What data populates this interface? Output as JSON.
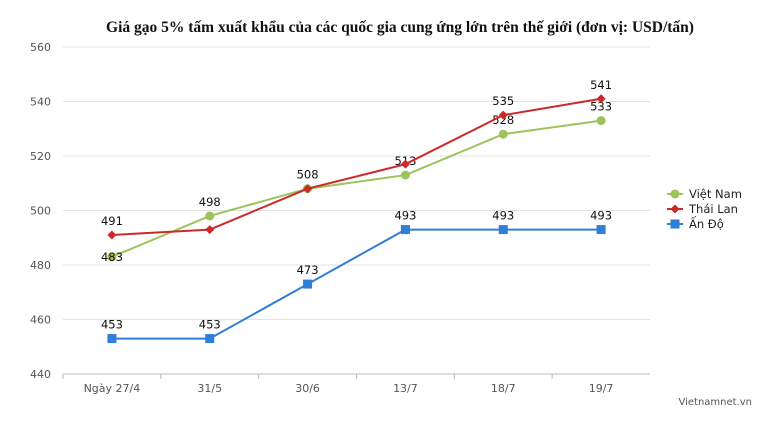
{
  "chart_data": {
    "type": "line",
    "title": "Giá gạo 5% tấm xuất khẩu của các quốc gia cung ứng lớn trên thế giới (đơn vị: USD/tấn)",
    "categories": [
      "Ngày 27/4",
      "31/5",
      "30/6",
      "13/7",
      "18/7",
      "19/7"
    ],
    "ylim": [
      440,
      560
    ],
    "yticks": [
      440,
      460,
      480,
      500,
      520,
      540,
      560
    ],
    "grid": true,
    "legend_position": "right",
    "series": [
      {
        "name": "Việt Nam",
        "color": "#9bc45a",
        "marker": "circle",
        "values": [
          483,
          498,
          508,
          513,
          528,
          533
        ],
        "labels": [
          "483",
          "498",
          "508",
          "513",
          "528",
          "533"
        ],
        "label_pos": [
          "below",
          "above",
          "none",
          "above",
          "above",
          "above"
        ]
      },
      {
        "name": "Thái Lan",
        "color": "#cc2a2a",
        "marker": "diamond",
        "values": [
          491,
          493,
          508,
          517,
          535,
          541
        ],
        "labels": [
          "491",
          "",
          "508",
          "",
          "535",
          "541"
        ],
        "label_pos": [
          "above",
          "none",
          "above",
          "none",
          "above",
          "above"
        ]
      },
      {
        "name": "Ấn Độ",
        "color": "#2f7ed8",
        "marker": "square",
        "values": [
          453,
          453,
          473,
          493,
          493,
          493
        ],
        "labels": [
          "453",
          "453",
          "473",
          "493",
          "493",
          "493"
        ],
        "label_pos": [
          "above",
          "above",
          "above",
          "above",
          "above",
          "above"
        ]
      }
    ]
  },
  "credit": "Vietnamnet.vn"
}
